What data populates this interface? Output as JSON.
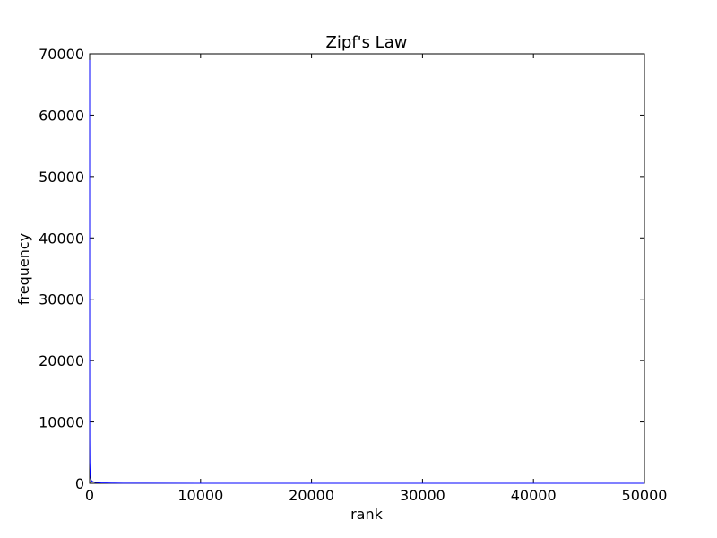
{
  "chart_data": {
    "type": "line",
    "title": "Zipf's Law",
    "xlabel": "rank",
    "ylabel": "frequency",
    "xlim": [
      0,
      50000
    ],
    "ylim": [
      0,
      70000
    ],
    "x_ticks": [
      0,
      10000,
      20000,
      30000,
      40000,
      50000
    ],
    "y_ticks": [
      0,
      10000,
      20000,
      30000,
      40000,
      50000,
      60000,
      70000
    ],
    "grid": false,
    "legend": "none",
    "series": [
      {
        "color": "#0000ff",
        "x": [
          1,
          2,
          3,
          5,
          10,
          20,
          50,
          100,
          200,
          500,
          1000,
          2000,
          3000,
          5000,
          10000,
          20000,
          30000,
          40000,
          50000
        ],
        "values": [
          69000,
          34500,
          23000,
          13800,
          6900,
          3450,
          1380,
          690,
          345,
          138,
          69,
          34,
          23,
          14,
          7,
          3,
          2,
          2,
          1
        ]
      }
    ]
  }
}
